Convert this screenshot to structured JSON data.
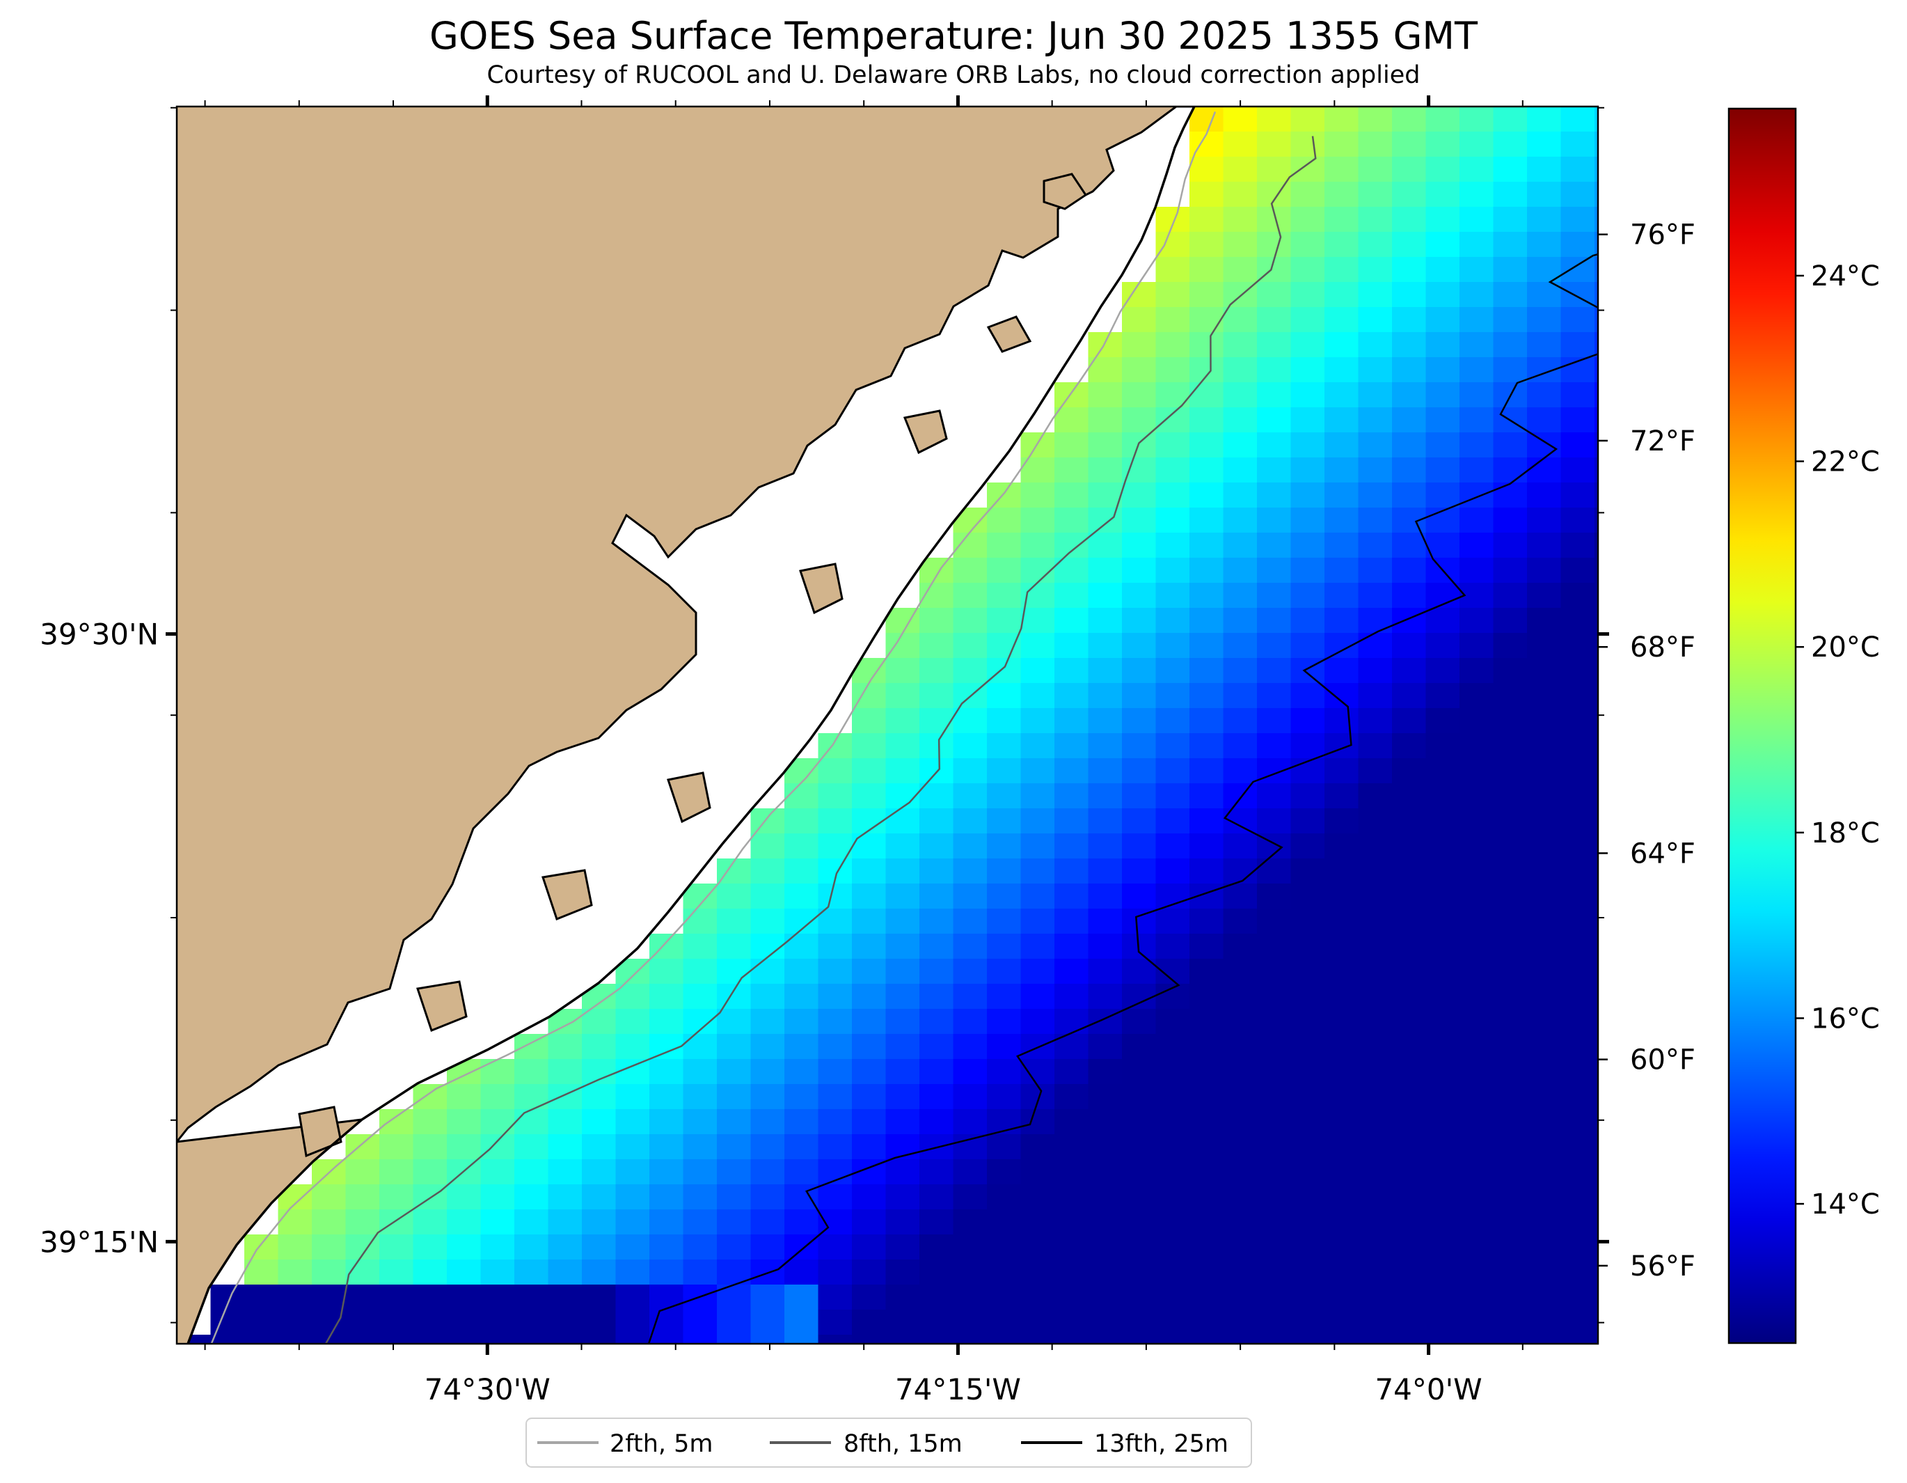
{
  "title": "GOES Sea Surface Temperature: Jun 30 2025 1355 GMT",
  "subtitle": "Courtesy of RUCOOL and U. Delaware ORB Labs, no cloud correction applied",
  "chart_data": {
    "type": "heatmap",
    "variable": "sea surface temperature",
    "units": "°C",
    "grid": false,
    "x_axis": {
      "ticks": [
        {
          "label": "74°30'W",
          "lon": -74.5
        },
        {
          "label": "74°15'W",
          "lon": -74.25
        },
        {
          "label": "74°0'W",
          "lon": -74.0
        }
      ],
      "range": [
        -74.665,
        -73.91
      ]
    },
    "y_axis": {
      "ticks": [
        {
          "label": "39°30'N",
          "lat": 39.5
        },
        {
          "label": "39°15'N",
          "lat": 39.25
        }
      ],
      "range": [
        39.208,
        39.717
      ]
    },
    "colorbar": {
      "colormap": "jet",
      "range_c": [
        12.5,
        25.8
      ],
      "celsius_ticks": [
        {
          "label": "14°C",
          "value": 14
        },
        {
          "label": "16°C",
          "value": 16
        },
        {
          "label": "18°C",
          "value": 18
        },
        {
          "label": "20°C",
          "value": 20
        },
        {
          "label": "22°C",
          "value": 22
        },
        {
          "label": "24°C",
          "value": 24
        }
      ],
      "fahrenheit_ticks": [
        {
          "label": "56°F",
          "value": 56
        },
        {
          "label": "60°F",
          "value": 60
        },
        {
          "label": "64°F",
          "value": 64
        },
        {
          "label": "68°F",
          "value": 68
        },
        {
          "label": "72°F",
          "value": 72
        },
        {
          "label": "76°F",
          "value": 76
        }
      ]
    },
    "legend": {
      "placement": "bottom-center",
      "entries": [
        {
          "label": "2fth, 5m",
          "color": "#a6a6a6"
        },
        {
          "label": "8fth, 15m",
          "color": "#595959"
        },
        {
          "label": "13fth, 25m",
          "color": "#000000"
        }
      ]
    },
    "colors": {
      "land": "#d2b48c",
      "coastline": "#000000",
      "no_data": "#ffffff"
    }
  }
}
